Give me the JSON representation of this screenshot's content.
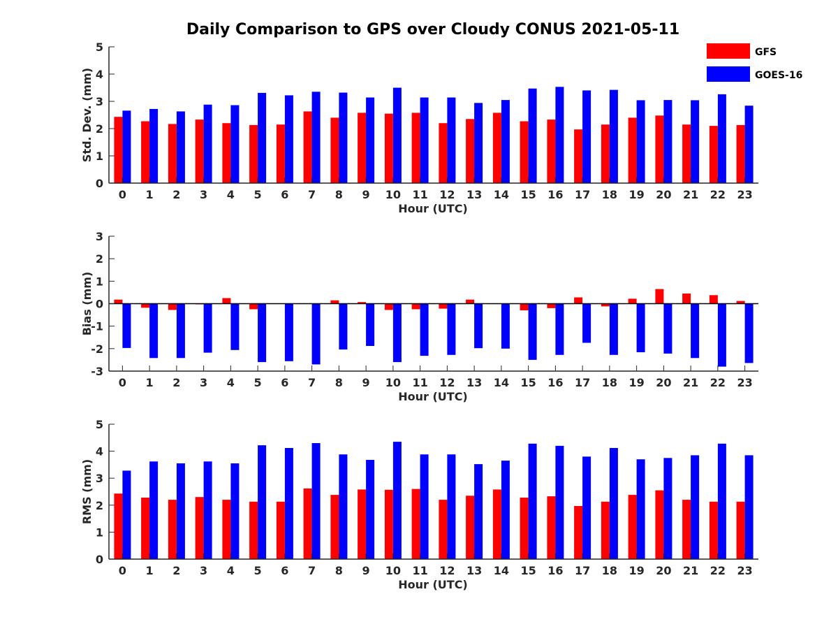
{
  "title": "Daily Comparison to GPS over Cloudy CONUS 2021-05-11",
  "legend": [
    {
      "label": "GFS",
      "color": "#ff0000"
    },
    {
      "label": "GOES-16",
      "color": "#0000ff"
    }
  ],
  "chart_data": [
    {
      "type": "bar",
      "xlabel": "Hour (UTC)",
      "ylabel": "Std. Dev. (mm)",
      "ylim": [
        0,
        5
      ],
      "yticks": [
        0,
        1,
        2,
        3,
        4,
        5
      ],
      "categories": [
        "0",
        "1",
        "2",
        "3",
        "4",
        "5",
        "6",
        "7",
        "8",
        "9",
        "10",
        "11",
        "12",
        "13",
        "14",
        "15",
        "16",
        "17",
        "18",
        "19",
        "20",
        "21",
        "22",
        "23"
      ],
      "series": [
        {
          "name": "GFS",
          "color": "#ff0000",
          "values": [
            2.43,
            2.27,
            2.17,
            2.33,
            2.2,
            2.13,
            2.15,
            2.63,
            2.4,
            2.58,
            2.55,
            2.58,
            2.2,
            2.35,
            2.58,
            2.27,
            2.33,
            1.97,
            2.15,
            2.4,
            2.48,
            2.15,
            2.1,
            2.13
          ]
        },
        {
          "name": "GOES-16",
          "color": "#0000ff",
          "values": [
            2.66,
            2.72,
            2.63,
            2.88,
            2.86,
            3.31,
            3.22,
            3.35,
            3.32,
            3.14,
            3.5,
            3.14,
            3.14,
            2.94,
            3.05,
            3.47,
            3.53,
            3.4,
            3.42,
            3.04,
            3.05,
            3.04,
            3.26,
            2.84
          ]
        }
      ]
    },
    {
      "type": "bar",
      "xlabel": "Hour (UTC)",
      "ylabel": "Bias (mm)",
      "ylim": [
        -3,
        3
      ],
      "yticks": [
        -3,
        -2,
        -1,
        0,
        1,
        2,
        3
      ],
      "categories": [
        "0",
        "1",
        "2",
        "3",
        "4",
        "5",
        "6",
        "7",
        "8",
        "9",
        "10",
        "11",
        "12",
        "13",
        "14",
        "15",
        "16",
        "17",
        "18",
        "19",
        "20",
        "21",
        "22",
        "23"
      ],
      "series": [
        {
          "name": "GFS",
          "color": "#ff0000",
          "values": [
            0.18,
            -0.18,
            -0.28,
            -0.03,
            0.25,
            -0.25,
            0.0,
            0.0,
            0.15,
            0.07,
            -0.28,
            -0.25,
            -0.22,
            0.18,
            0.0,
            -0.3,
            -0.2,
            0.28,
            -0.12,
            0.22,
            0.65,
            0.45,
            0.38,
            0.12
          ]
        },
        {
          "name": "GOES-16",
          "color": "#0000ff",
          "values": [
            -1.97,
            -2.42,
            -2.42,
            -2.18,
            -2.06,
            -2.6,
            -2.56,
            -2.7,
            -2.04,
            -1.88,
            -2.6,
            -2.32,
            -2.28,
            -1.98,
            -2.0,
            -2.5,
            -2.28,
            -1.74,
            -2.28,
            -2.16,
            -2.22,
            -2.42,
            -2.8,
            -2.64
          ]
        }
      ]
    },
    {
      "type": "bar",
      "xlabel": "Hour (UTC)",
      "ylabel": "RMS (mm)",
      "ylim": [
        0,
        5
      ],
      "yticks": [
        0,
        1,
        2,
        3,
        4,
        5
      ],
      "categories": [
        "0",
        "1",
        "2",
        "3",
        "4",
        "5",
        "6",
        "7",
        "8",
        "9",
        "10",
        "11",
        "12",
        "13",
        "14",
        "15",
        "16",
        "17",
        "18",
        "19",
        "20",
        "21",
        "22",
        "23"
      ],
      "series": [
        {
          "name": "GFS",
          "color": "#ff0000",
          "values": [
            2.43,
            2.28,
            2.2,
            2.3,
            2.2,
            2.13,
            2.13,
            2.62,
            2.38,
            2.58,
            2.57,
            2.6,
            2.2,
            2.35,
            2.58,
            2.28,
            2.33,
            1.97,
            2.13,
            2.38,
            2.55,
            2.2,
            2.13,
            2.13
          ]
        },
        {
          "name": "GOES-16",
          "color": "#0000ff",
          "values": [
            3.28,
            3.62,
            3.55,
            3.62,
            3.55,
            4.22,
            4.12,
            4.3,
            3.88,
            3.68,
            4.35,
            3.88,
            3.88,
            3.52,
            3.65,
            4.28,
            4.2,
            3.8,
            4.12,
            3.7,
            3.75,
            3.85,
            4.28,
            3.85
          ]
        }
      ]
    }
  ]
}
